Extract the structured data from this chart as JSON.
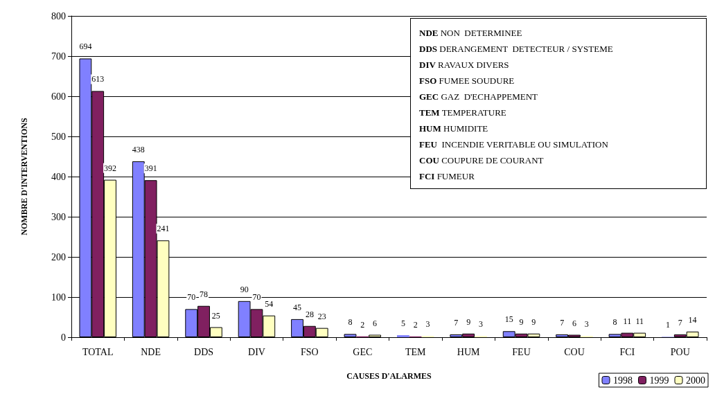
{
  "chart_data": {
    "type": "bar",
    "xlabel": "CAUSES D'ALARMES",
    "ylabel": "NOMBRE D'INTERVENTIONS",
    "categories": [
      "TOTAL",
      "NDE",
      "DDS",
      "DIV",
      "FSO",
      "GEC",
      "TEM",
      "HUM",
      "FEU",
      "COU",
      "FCI",
      "POU"
    ],
    "series": [
      {
        "name": "1998",
        "color": "#8080ff",
        "values": [
          694,
          438,
          70,
          90,
          45,
          8,
          5,
          7,
          15,
          7,
          8,
          1
        ]
      },
      {
        "name": "1999",
        "color": "#802060",
        "values": [
          613,
          391,
          78,
          70,
          28,
          2,
          2,
          9,
          9,
          6,
          11,
          7
        ]
      },
      {
        "name": "2000",
        "color": "#ffffc0",
        "values": [
          392,
          241,
          25,
          54,
          23,
          6,
          3,
          3,
          9,
          3,
          11,
          14
        ]
      }
    ],
    "ylim": [
      0,
      800
    ],
    "yticks": [
      0,
      100,
      200,
      300,
      400,
      500,
      600,
      700,
      800
    ],
    "grid": "y",
    "legend": "bottom right",
    "data_labels": true,
    "annotations": [
      "NDE NON  DETERMINEE",
      "DDS DERANGEMENT  DETECTEUR / SYSTEME",
      "DIV RAVAUX DIVERS",
      "FSO FUMEE SOUDURE",
      "GEC GAZ  D'ECHAPPEMENT",
      "TEM TEMPERATURE",
      "HUM HUMIDITE",
      "FEU  INCENDIE VERITABLE OU SIMULATION",
      "COU COUPURE DE COURANT",
      "FCI FUMEUR"
    ]
  }
}
